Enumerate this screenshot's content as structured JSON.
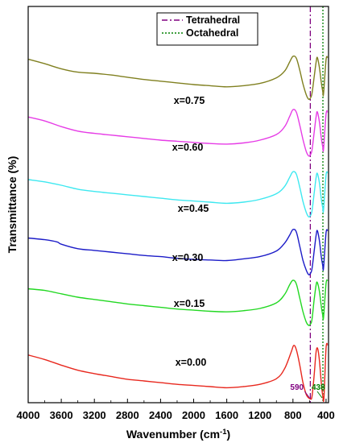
{
  "chart_data": {
    "type": "line",
    "xlabel": "Wavenumber (cm",
    "xlabel_sup": "-1",
    "xlabel_end": ")",
    "ylabel": "Transmittance (%)",
    "xlim": [
      4000,
      370
    ],
    "x_reversed": true,
    "x_ticks": [
      4000,
      3600,
      3200,
      2800,
      2400,
      2000,
      1600,
      1200,
      800,
      400
    ],
    "y_ticks_shown": false,
    "grid": false,
    "legend_position": "top-right",
    "legend": [
      {
        "label": "Tetrahedral",
        "color": "#800080",
        "style": "dash-dot"
      },
      {
        "label": "Octahedral",
        "color": "#008000",
        "style": "dotted"
      }
    ],
    "vlines": [
      {
        "x": 590,
        "color": "#800080",
        "style": "dash-dot"
      },
      {
        "x": 438,
        "color": "#008000",
        "style": "dotted"
      }
    ],
    "annotations": [
      {
        "text": "590",
        "x": 590,
        "color": "#800080"
      },
      {
        "text": "438",
        "x": 438,
        "color": "#008000"
      }
    ],
    "y_unit_note": "arbitrary offset units (curves stacked)",
    "series": [
      {
        "name": "x=0.00",
        "color": "#e8281e",
        "points": [
          [
            4000,
            76
          ],
          [
            3800,
            68
          ],
          [
            3600,
            58
          ],
          [
            3400,
            49
          ],
          [
            3200,
            43
          ],
          [
            3000,
            38
          ],
          [
            2800,
            33
          ],
          [
            2600,
            30
          ],
          [
            2400,
            27
          ],
          [
            2200,
            24
          ],
          [
            2000,
            22
          ],
          [
            1800,
            20
          ],
          [
            1600,
            18
          ],
          [
            1400,
            20
          ],
          [
            1200,
            24
          ],
          [
            1000,
            34
          ],
          [
            900,
            52
          ],
          [
            820,
            82
          ],
          [
            790,
            93
          ],
          [
            760,
            86
          ],
          [
            720,
            60
          ],
          [
            680,
            28
          ],
          [
            640,
            6
          ],
          [
            610,
            0
          ],
          [
            590,
            -2
          ],
          [
            570,
            2
          ],
          [
            545,
            38
          ],
          [
            520,
            82
          ],
          [
            500,
            87
          ],
          [
            480,
            66
          ],
          [
            460,
            30
          ],
          [
            440,
            4
          ],
          [
            425,
            0
          ],
          [
            400,
            88
          ],
          [
            380,
            94
          ]
        ]
      },
      {
        "name": "x=0.15",
        "color": "#22d822",
        "points": [
          [
            4000,
            85
          ],
          [
            3800,
            82
          ],
          [
            3600,
            76
          ],
          [
            3400,
            70
          ],
          [
            3200,
            66
          ],
          [
            3000,
            62
          ],
          [
            2800,
            58
          ],
          [
            2600,
            55
          ],
          [
            2400,
            52
          ],
          [
            2200,
            49
          ],
          [
            2000,
            47
          ],
          [
            1800,
            45
          ],
          [
            1600,
            44
          ],
          [
            1400,
            46
          ],
          [
            1200,
            50
          ],
          [
            1000,
            60
          ],
          [
            900,
            75
          ],
          [
            840,
            92
          ],
          [
            800,
            100
          ],
          [
            760,
            94
          ],
          [
            720,
            70
          ],
          [
            680,
            45
          ],
          [
            640,
            26
          ],
          [
            610,
            20
          ],
          [
            590,
            22
          ],
          [
            570,
            30
          ],
          [
            545,
            64
          ],
          [
            520,
            92
          ],
          [
            505,
            96
          ],
          [
            480,
            80
          ],
          [
            460,
            56
          ],
          [
            440,
            38
          ],
          [
            430,
            34
          ],
          [
            400,
            94
          ],
          [
            380,
            100
          ]
        ]
      },
      {
        "name": "x=0.30",
        "color": "#1c1cc8",
        "points": [
          [
            4000,
            95
          ],
          [
            3800,
            92
          ],
          [
            3650,
            88
          ],
          [
            3600,
            84
          ],
          [
            3400,
            76
          ],
          [
            3200,
            73
          ],
          [
            3000,
            70
          ],
          [
            2800,
            67
          ],
          [
            2600,
            64
          ],
          [
            2400,
            62
          ],
          [
            2200,
            59
          ],
          [
            2000,
            57
          ],
          [
            1800,
            56
          ],
          [
            1600,
            55
          ],
          [
            1400,
            58
          ],
          [
            1200,
            62
          ],
          [
            1000,
            72
          ],
          [
            900,
            86
          ],
          [
            840,
            100
          ],
          [
            800,
            110
          ],
          [
            760,
            106
          ],
          [
            720,
            82
          ],
          [
            680,
            56
          ],
          [
            640,
            38
          ],
          [
            610,
            30
          ],
          [
            590,
            32
          ],
          [
            570,
            40
          ],
          [
            545,
            70
          ],
          [
            520,
            100
          ],
          [
            505,
            108
          ],
          [
            480,
            90
          ],
          [
            460,
            64
          ],
          [
            440,
            46
          ],
          [
            430,
            42
          ],
          [
            400,
            104
          ],
          [
            380,
            108
          ]
        ]
      },
      {
        "name": "x=0.45",
        "color": "#3ee8f0",
        "points": [
          [
            4000,
            110
          ],
          [
            3800,
            106
          ],
          [
            3600,
            100
          ],
          [
            3400,
            93
          ],
          [
            3200,
            89
          ],
          [
            3000,
            86
          ],
          [
            2800,
            83
          ],
          [
            2600,
            80
          ],
          [
            2400,
            77
          ],
          [
            2200,
            74
          ],
          [
            2000,
            72
          ],
          [
            1800,
            70
          ],
          [
            1600,
            68
          ],
          [
            1400,
            70
          ],
          [
            1200,
            75
          ],
          [
            1000,
            85
          ],
          [
            900,
            98
          ],
          [
            840,
            114
          ],
          [
            800,
            124
          ],
          [
            760,
            120
          ],
          [
            720,
            98
          ],
          [
            680,
            72
          ],
          [
            640,
            52
          ],
          [
            610,
            44
          ],
          [
            590,
            46
          ],
          [
            570,
            54
          ],
          [
            545,
            84
          ],
          [
            520,
            114
          ],
          [
            505,
            121
          ],
          [
            480,
            104
          ],
          [
            460,
            78
          ],
          [
            440,
            60
          ],
          [
            430,
            56
          ],
          [
            400,
            118
          ],
          [
            380,
            122
          ]
        ]
      },
      {
        "name": "x=0.60",
        "color": "#e63ce6",
        "points": [
          [
            4000,
            131
          ],
          [
            3800,
            124
          ],
          [
            3600,
            114
          ],
          [
            3400,
            106
          ],
          [
            3200,
            102
          ],
          [
            3000,
            99
          ],
          [
            2800,
            96
          ],
          [
            2600,
            93
          ],
          [
            2400,
            90
          ],
          [
            2200,
            88
          ],
          [
            2000,
            86
          ],
          [
            1800,
            84
          ],
          [
            1600,
            83
          ],
          [
            1400,
            85
          ],
          [
            1200,
            90
          ],
          [
            1000,
            100
          ],
          [
            900,
            114
          ],
          [
            840,
            132
          ],
          [
            800,
            144
          ],
          [
            760,
            140
          ],
          [
            720,
            118
          ],
          [
            680,
            92
          ],
          [
            640,
            70
          ],
          [
            610,
            62
          ],
          [
            590,
            64
          ],
          [
            570,
            72
          ],
          [
            545,
            102
          ],
          [
            520,
            132
          ],
          [
            505,
            140
          ],
          [
            480,
            122
          ],
          [
            460,
            96
          ],
          [
            440,
            78
          ],
          [
            430,
            74
          ],
          [
            400,
            136
          ],
          [
            380,
            140
          ]
        ]
      },
      {
        "name": "x=0.75",
        "color": "#808020",
        "points": [
          [
            4000,
            155
          ],
          [
            3800,
            147
          ],
          [
            3600,
            138
          ],
          [
            3400,
            132
          ],
          [
            3200,
            130
          ],
          [
            3000,
            127
          ],
          [
            2800,
            123
          ],
          [
            2600,
            119
          ],
          [
            2400,
            116
          ],
          [
            2200,
            113
          ],
          [
            2000,
            110
          ],
          [
            1800,
            108
          ],
          [
            1600,
            106
          ],
          [
            1400,
            108
          ],
          [
            1200,
            112
          ],
          [
            1000,
            122
          ],
          [
            900,
            134
          ],
          [
            840,
            150
          ],
          [
            800,
            160
          ],
          [
            760,
            157
          ],
          [
            720,
            137
          ],
          [
            680,
            112
          ],
          [
            640,
            92
          ],
          [
            610,
            84
          ],
          [
            590,
            86
          ],
          [
            570,
            94
          ],
          [
            545,
            122
          ],
          [
            520,
            150
          ],
          [
            505,
            158
          ],
          [
            480,
            140
          ],
          [
            460,
            116
          ],
          [
            440,
            98
          ],
          [
            430,
            94
          ],
          [
            400,
            154
          ],
          [
            380,
            158
          ]
        ]
      }
    ]
  }
}
